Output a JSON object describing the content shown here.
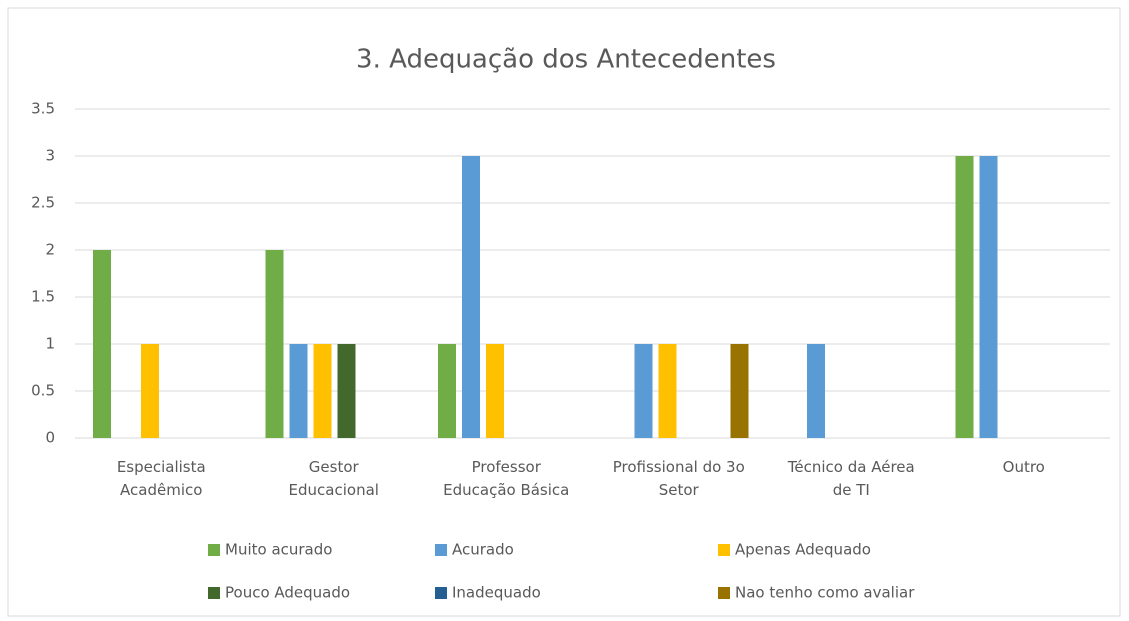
{
  "chart_data": {
    "type": "bar",
    "title": "3. Adequação dos Antecedentes",
    "categories": [
      "Especialista\nAcadêmico",
      "Gestor\nEducacional",
      "Professor\nEducação Básica",
      "Profissional do 3o\nSetor",
      "Técnico da Aérea\nde TI",
      "Outro"
    ],
    "series": [
      {
        "name": "Muito acurado",
        "color": "#70ad47",
        "values": [
          2,
          2,
          1,
          0,
          0,
          3
        ]
      },
      {
        "name": "Acurado",
        "color": "#5b9bd5",
        "values": [
          0,
          1,
          3,
          1,
          1,
          3
        ]
      },
      {
        "name": "Apenas Adequado",
        "color": "#ffc000",
        "values": [
          1,
          1,
          1,
          1,
          0,
          0
        ]
      },
      {
        "name": "Pouco Adequado",
        "color": "#43682b",
        "values": [
          0,
          1,
          0,
          0,
          0,
          0
        ]
      },
      {
        "name": "Inadequado",
        "color": "#255e91",
        "values": [
          0,
          0,
          0,
          0,
          0,
          0
        ]
      },
      {
        "name": "Nao tenho como avaliar",
        "color": "#997300",
        "values": [
          0,
          0,
          0,
          1,
          0,
          0
        ]
      }
    ],
    "ylim": [
      0,
      3.5
    ],
    "yticks": [
      0,
      0.5,
      1,
      1.5,
      2,
      2.5,
      3,
      3.5
    ],
    "grid": true,
    "legend": "bottom"
  }
}
